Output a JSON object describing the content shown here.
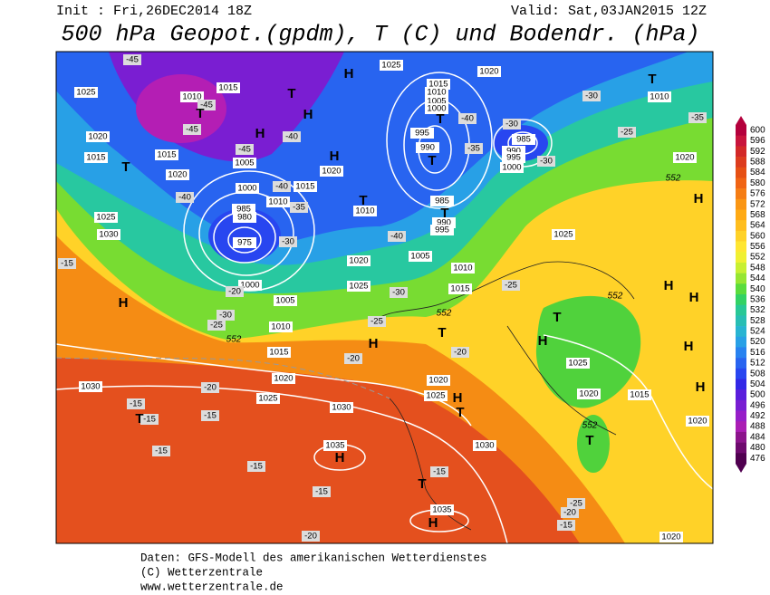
{
  "header": {
    "init": "Init : Fri,26DEC2014 18Z",
    "valid": "Valid: Sat,03JAN2015 12Z",
    "title": "500 hPa Geopot.(gpdm), T (C) und Bodendr. (hPa)"
  },
  "colorbar": {
    "values": [
      600,
      596,
      592,
      588,
      584,
      580,
      576,
      572,
      568,
      564,
      560,
      556,
      552,
      548,
      544,
      540,
      536,
      532,
      528,
      524,
      520,
      516,
      512,
      508,
      504,
      500,
      496,
      492,
      488,
      484,
      480,
      476
    ],
    "colors": [
      "#b4003c",
      "#c8143c",
      "#d22828",
      "#dc3c1e",
      "#e65014",
      "#f06414",
      "#f57d14",
      "#fa9614",
      "#ffaa14",
      "#ffbe1e",
      "#ffd228",
      "#ffe632",
      "#f0f032",
      "#c8f032",
      "#96e632",
      "#5adc3c",
      "#32d264",
      "#28c896",
      "#28beb4",
      "#28b4d2",
      "#28a0e6",
      "#2882f0",
      "#2864f0",
      "#2846f0",
      "#3228e6",
      "#5a1edc",
      "#781ed2",
      "#961ec8",
      "#aa1eb4",
      "#8c148c",
      "#6e0a6e",
      "#500050"
    ]
  },
  "map_labels": [
    1025,
    1020,
    1015,
    1010,
    1005,
    1000,
    1010,
    1015,
    1025,
    1020,
    1015,
    1015,
    1020,
    1005,
    1000,
    1010,
    1015,
    1010,
    1020,
    995,
    990,
    985,
    990,
    995,
    1000,
    985,
    990,
    995,
    985,
    980,
    975,
    1025,
    1030,
    1000,
    1005,
    1010,
    1015,
    1020,
    1025,
    1030,
    1020,
    1025,
    1005,
    1010,
    1015,
    1025,
    1020,
    1010,
    1025,
    1020,
    1015,
    1020,
    1030,
    1035,
    1030,
    1035,
    1020,
    1020,
    1025,
    -45,
    -45,
    -45,
    -40,
    -45,
    -40,
    -35,
    -30,
    -40,
    -40,
    -30,
    -35,
    -25,
    -35,
    -30,
    -40,
    -30,
    -25,
    -20,
    -20,
    -30,
    -25,
    -20,
    -25,
    -15,
    -20,
    -15,
    -15,
    -15,
    -15,
    -15,
    -15,
    -15,
    -20,
    -20,
    -15,
    -25,
    -30,
    552,
    552,
    552,
    552,
    552,
    "H",
    "H",
    "H",
    "H",
    "H",
    "H",
    "H",
    "H",
    "H",
    "H",
    "H",
    "H",
    "H",
    "H",
    "H",
    "T",
    "T",
    "T",
    "T",
    "T",
    "T",
    "T",
    "T",
    "T",
    "T",
    "T",
    "T",
    "T",
    "T"
  ],
  "footer": [
    "Daten: GFS-Modell des amerikanischen Wetterdienstes",
    "(C) Wetterzentrale",
    "www.wetterzentrale.de"
  ]
}
